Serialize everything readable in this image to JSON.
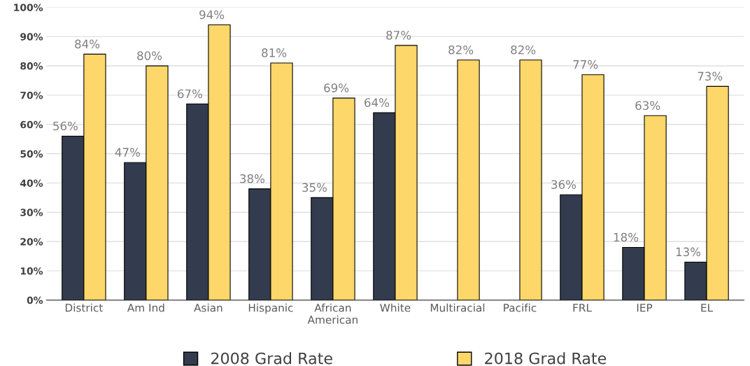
{
  "chart_data": {
    "type": "bar",
    "categories": [
      "District",
      "Am Ind",
      "Asian",
      "Hispanic",
      "African\nAmerican",
      "White",
      "Multiracial",
      "Pacific",
      "FRL",
      "IEP",
      "EL"
    ],
    "series": [
      {
        "name": "2008 Grad Rate",
        "color": "#323c4e",
        "values": [
          56,
          47,
          67,
          38,
          35,
          64,
          null,
          null,
          36,
          18,
          13
        ],
        "value_labels": [
          "56%",
          "47%",
          "67%",
          "38%",
          "35%",
          "64%",
          null,
          null,
          "36%",
          "18%",
          "13%"
        ]
      },
      {
        "name": "2018 Grad Rate",
        "color": "#fdd76a",
        "values": [
          84,
          80,
          94,
          81,
          69,
          87,
          82,
          82,
          77,
          63,
          73
        ],
        "value_labels": [
          "84%",
          "80%",
          "94%",
          "81%",
          "69%",
          "87%",
          "82%",
          "82%",
          "77%",
          "63%",
          "73%"
        ]
      }
    ],
    "ylim": [
      0,
      100
    ],
    "yticks": [
      {
        "value": 0,
        "label": "0%"
      },
      {
        "value": 10,
        "label": "10%"
      },
      {
        "value": 20,
        "label": "20%"
      },
      {
        "value": 30,
        "label": "30%"
      },
      {
        "value": 40,
        "label": "40%"
      },
      {
        "value": 50,
        "label": "50%"
      },
      {
        "value": 60,
        "label": "60%"
      },
      {
        "value": 70,
        "label": "70%"
      },
      {
        "value": 80,
        "label": "80%"
      },
      {
        "value": 90,
        "label": "90%"
      },
      {
        "value": 100,
        "label": "100%"
      }
    ],
    "grid": "y",
    "legend": "bottom"
  }
}
